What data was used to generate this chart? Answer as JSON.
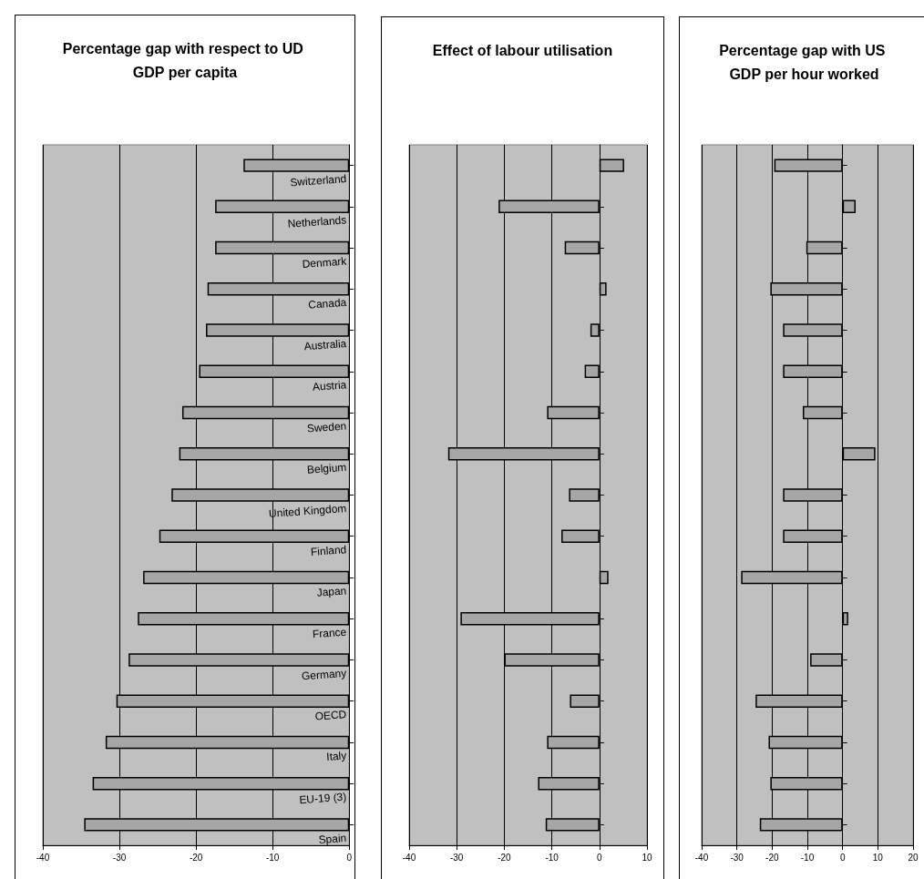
{
  "chart_data": [
    {
      "type": "bar",
      "orientation": "horizontal",
      "title": "Percentage gap with respect to UD GDP per capita",
      "categories": [
        "Switzerland",
        "Netherlands",
        "Denmark",
        "Canada",
        "Australia",
        "Austria",
        "Sweden",
        "Belgium",
        "United Kingdom",
        "Finland",
        "Japan",
        "France",
        "Germany",
        "OECD",
        "Italy",
        "EU-19 (3)",
        "Spain"
      ],
      "series": [
        {
          "color": "#a6a6a6",
          "values": [
            -13.8,
            -17.5,
            -17.5,
            -18.5,
            -18.7,
            -19.6,
            -21.8,
            -22.2,
            -23.2,
            -24.8,
            -26.9,
            -27.6,
            -28.8,
            -30.4,
            -31.8,
            -33.5,
            -34.6
          ]
        }
      ],
      "xlim": [
        -40,
        0
      ],
      "xticks": [
        -40,
        -30,
        -20,
        -10,
        0
      ],
      "grid": "x"
    },
    {
      "type": "bar",
      "orientation": "horizontal",
      "title": "Effect of labour utilisation",
      "categories": [
        null,
        null,
        null,
        null,
        null,
        null,
        null,
        null,
        null,
        null,
        null,
        null,
        null,
        null,
        null,
        null,
        null
      ],
      "series": [
        {
          "color": "#a6a6a6",
          "values": [
            5.2,
            -21.2,
            -7.3,
            1.5,
            -1.9,
            -3.1,
            -11,
            -31.8,
            -6.4,
            -8,
            1.9,
            -29.2,
            -20,
            -6.2,
            -11,
            -12.9,
            -11.3
          ]
        }
      ],
      "xlim": [
        -40,
        10
      ],
      "xticks": [
        -40,
        -30,
        -20,
        -10,
        0,
        10
      ],
      "grid": "x",
      "tick_labels": "x"
    },
    {
      "type": "bar",
      "orientation": "horizontal",
      "title": "Percentage gap with US GDP per hour worked",
      "categories": [
        null,
        null,
        null,
        null,
        null,
        null,
        null,
        null,
        null,
        null,
        null,
        null,
        null,
        null,
        null,
        null,
        null
      ],
      "series": [
        {
          "color": "#a6a6a6",
          "values": [
            -19.4,
            3.7,
            -10.3,
            -20.5,
            -16.9,
            -16.9,
            -11.3,
            9.3,
            -16.9,
            -16.9,
            -28.8,
            1.6,
            -9.2,
            -24.7,
            -21,
            -20.5,
            -23.5
          ]
        }
      ],
      "xlim": [
        -40,
        20
      ],
      "xticks": [
        -40,
        -30,
        -20,
        -10,
        0,
        10,
        20
      ],
      "grid": "x",
      "tick_labels": "x"
    }
  ]
}
